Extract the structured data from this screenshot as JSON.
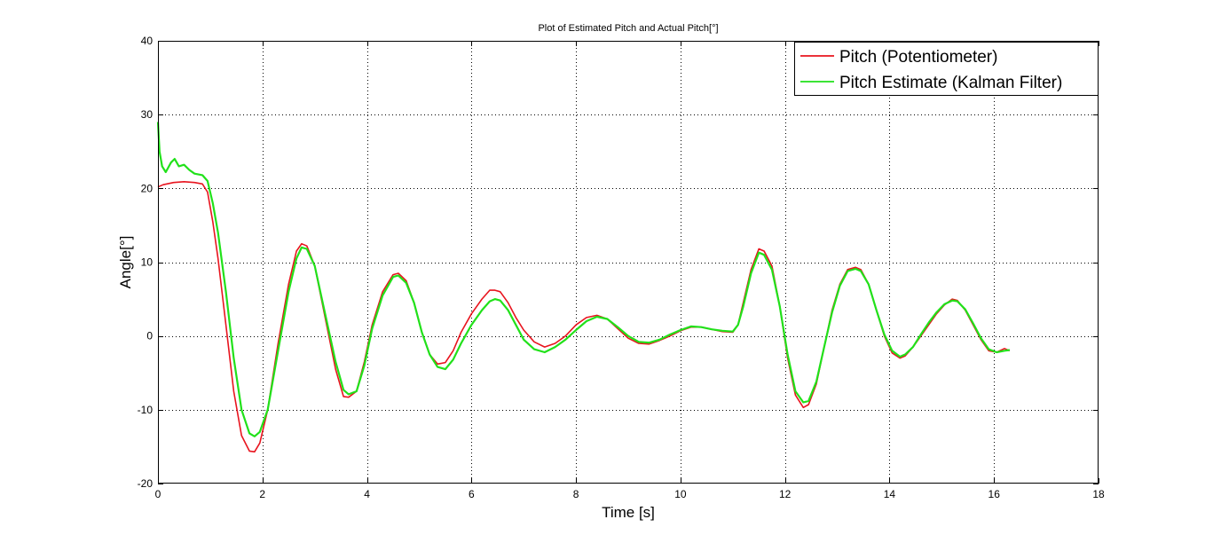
{
  "chart_data": {
    "type": "line",
    "title": "Plot of Estimated Pitch and Actual Pitch[°]",
    "xlabel": "Time [s]",
    "ylabel": "Angle[°]",
    "xlim": [
      0,
      18
    ],
    "ylim": [
      -20,
      40
    ],
    "xticks": [
      0,
      2,
      4,
      6,
      8,
      10,
      12,
      14,
      16,
      18
    ],
    "yticks": [
      -20,
      -10,
      0,
      10,
      20,
      30,
      40
    ],
    "grid": true,
    "legend_position": "top-right",
    "series": [
      {
        "name": "Pitch (Potentiometer)",
        "color": "#e8141e",
        "x": [
          0,
          0.1,
          0.3,
          0.5,
          0.7,
          0.85,
          0.95,
          1.05,
          1.15,
          1.3,
          1.45,
          1.6,
          1.75,
          1.85,
          1.95,
          2.1,
          2.3,
          2.5,
          2.65,
          2.75,
          2.85,
          3.0,
          3.2,
          3.4,
          3.55,
          3.65,
          3.8,
          3.95,
          4.1,
          4.3,
          4.5,
          4.6,
          4.75,
          4.9,
          5.05,
          5.2,
          5.35,
          5.5,
          5.65,
          5.8,
          6.0,
          6.2,
          6.35,
          6.45,
          6.55,
          6.7,
          6.85,
          7.0,
          7.2,
          7.4,
          7.6,
          7.8,
          8.0,
          8.2,
          8.4,
          8.6,
          8.8,
          9.0,
          9.2,
          9.4,
          9.6,
          9.8,
          10.0,
          10.2,
          10.4,
          10.6,
          10.8,
          11.0,
          11.1,
          11.2,
          11.35,
          11.5,
          11.6,
          11.75,
          11.9,
          12.05,
          12.2,
          12.35,
          12.45,
          12.6,
          12.75,
          12.9,
          13.05,
          13.2,
          13.35,
          13.45,
          13.6,
          13.75,
          13.9,
          14.05,
          14.2,
          14.3,
          14.45,
          14.6,
          14.75,
          14.9,
          15.05,
          15.2,
          15.3,
          15.45,
          15.6,
          15.75,
          15.9,
          16.05,
          16.2,
          16.3
        ],
        "y": [
          20.2,
          20.5,
          20.8,
          20.9,
          20.8,
          20.6,
          19.5,
          15.5,
          10.5,
          1.5,
          -7.5,
          -13.5,
          -15.6,
          -15.7,
          -14.5,
          -10.0,
          -1.0,
          7.0,
          11.5,
          12.5,
          12.2,
          9.5,
          2.5,
          -4.5,
          -8.2,
          -8.3,
          -7.5,
          -3.5,
          1.5,
          6.0,
          8.3,
          8.5,
          7.5,
          4.5,
          0.5,
          -2.5,
          -3.8,
          -3.6,
          -2.0,
          0.5,
          3.0,
          5.0,
          6.2,
          6.2,
          6.0,
          4.5,
          2.5,
          0.8,
          -0.8,
          -1.5,
          -1.0,
          0.0,
          1.5,
          2.5,
          2.8,
          2.3,
          1.0,
          -0.3,
          -1.0,
          -1.1,
          -0.6,
          0.0,
          0.7,
          1.2,
          1.2,
          0.9,
          0.6,
          0.5,
          1.5,
          4.5,
          9.0,
          11.8,
          11.5,
          9.5,
          4.0,
          -3.0,
          -8.0,
          -9.7,
          -9.3,
          -6.5,
          -1.5,
          3.5,
          7.0,
          9.0,
          9.3,
          9.0,
          7.0,
          3.5,
          0.0,
          -2.3,
          -3.0,
          -2.7,
          -1.5,
          0.0,
          1.5,
          3.0,
          4.2,
          5.0,
          4.8,
          3.5,
          1.5,
          -0.5,
          -2.0,
          -2.2,
          -1.7,
          -2.0
        ]
      },
      {
        "name": "Pitch Estimate (Kalman Filter)",
        "color": "#21e11a",
        "x": [
          0,
          0.03,
          0.08,
          0.15,
          0.25,
          0.32,
          0.4,
          0.5,
          0.6,
          0.7,
          0.85,
          0.95,
          1.05,
          1.15,
          1.3,
          1.45,
          1.6,
          1.75,
          1.85,
          1.95,
          2.1,
          2.3,
          2.5,
          2.65,
          2.75,
          2.85,
          3.0,
          3.2,
          3.4,
          3.55,
          3.65,
          3.8,
          3.95,
          4.1,
          4.3,
          4.5,
          4.6,
          4.75,
          4.9,
          5.05,
          5.2,
          5.35,
          5.5,
          5.65,
          5.8,
          6.0,
          6.2,
          6.35,
          6.45,
          6.55,
          6.7,
          6.85,
          7.0,
          7.2,
          7.4,
          7.6,
          7.8,
          8.0,
          8.2,
          8.4,
          8.6,
          8.8,
          9.0,
          9.2,
          9.4,
          9.6,
          9.8,
          10.0,
          10.2,
          10.4,
          10.6,
          10.8,
          11.0,
          11.1,
          11.2,
          11.35,
          11.5,
          11.6,
          11.75,
          11.9,
          12.05,
          12.2,
          12.35,
          12.45,
          12.6,
          12.75,
          12.9,
          13.05,
          13.2,
          13.35,
          13.45,
          13.6,
          13.75,
          13.9,
          14.05,
          14.2,
          14.3,
          14.45,
          14.6,
          14.75,
          14.9,
          15.05,
          15.2,
          15.3,
          15.45,
          15.6,
          15.75,
          15.9,
          16.05,
          16.2,
          16.3
        ],
        "y": [
          29.0,
          25.0,
          23.0,
          22.2,
          23.5,
          24.0,
          23.0,
          23.2,
          22.5,
          22.0,
          21.8,
          21.0,
          18.0,
          14.0,
          6.0,
          -3.0,
          -10.0,
          -13.2,
          -13.6,
          -13.0,
          -10.0,
          -2.0,
          6.0,
          10.5,
          12.0,
          11.8,
          9.5,
          3.0,
          -3.5,
          -7.3,
          -7.9,
          -7.5,
          -4.0,
          1.0,
          5.5,
          8.0,
          8.2,
          7.2,
          4.5,
          0.5,
          -2.5,
          -4.2,
          -4.5,
          -3.2,
          -1.0,
          1.5,
          3.5,
          4.7,
          5.0,
          4.8,
          3.5,
          1.5,
          -0.5,
          -1.8,
          -2.2,
          -1.5,
          -0.5,
          0.8,
          2.0,
          2.6,
          2.3,
          1.2,
          0.0,
          -0.8,
          -0.9,
          -0.5,
          0.2,
          0.8,
          1.3,
          1.2,
          0.9,
          0.7,
          0.6,
          1.5,
          4.0,
          8.5,
          11.3,
          11.0,
          9.0,
          4.0,
          -2.5,
          -7.5,
          -9.0,
          -8.8,
          -6.2,
          -1.5,
          3.2,
          6.8,
          8.8,
          9.1,
          8.8,
          7.0,
          3.5,
          0.2,
          -2.0,
          -2.8,
          -2.5,
          -1.5,
          0.2,
          1.8,
          3.2,
          4.3,
          4.8,
          4.7,
          3.6,
          1.7,
          -0.3,
          -1.8,
          -2.2,
          -2.0,
          -1.9
        ]
      }
    ]
  }
}
